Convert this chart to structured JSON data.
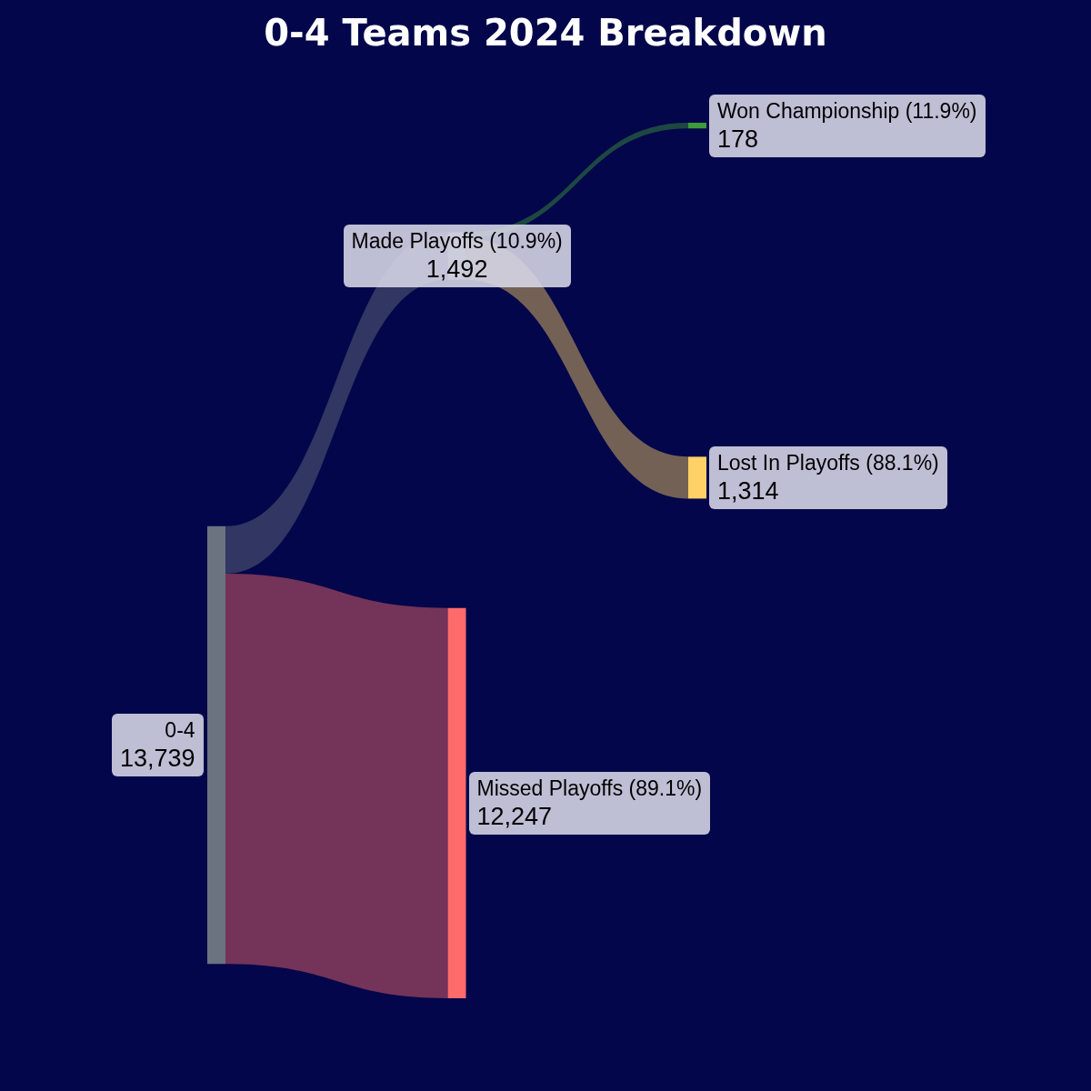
{
  "chart_data": {
    "type": "other",
    "title": "0-4 Teams 2024 Breakdown",
    "categories": [
      "0-4",
      "Made Playoffs (10.9%)",
      "Missed Playoffs (89.1%)",
      "Won Championship (11.9%)",
      "Lost In Playoffs (88.1%)"
    ],
    "values": [
      13739,
      1492,
      12247,
      178,
      1314
    ],
    "value_labels": [
      "13,739",
      "1,492",
      "12,247",
      "178",
      "1,314"
    ],
    "colors": [
      "#6b7280",
      "#6b7280",
      "#ff6b6b",
      "#3f9a3a",
      "#ffd166"
    ]
  }
}
